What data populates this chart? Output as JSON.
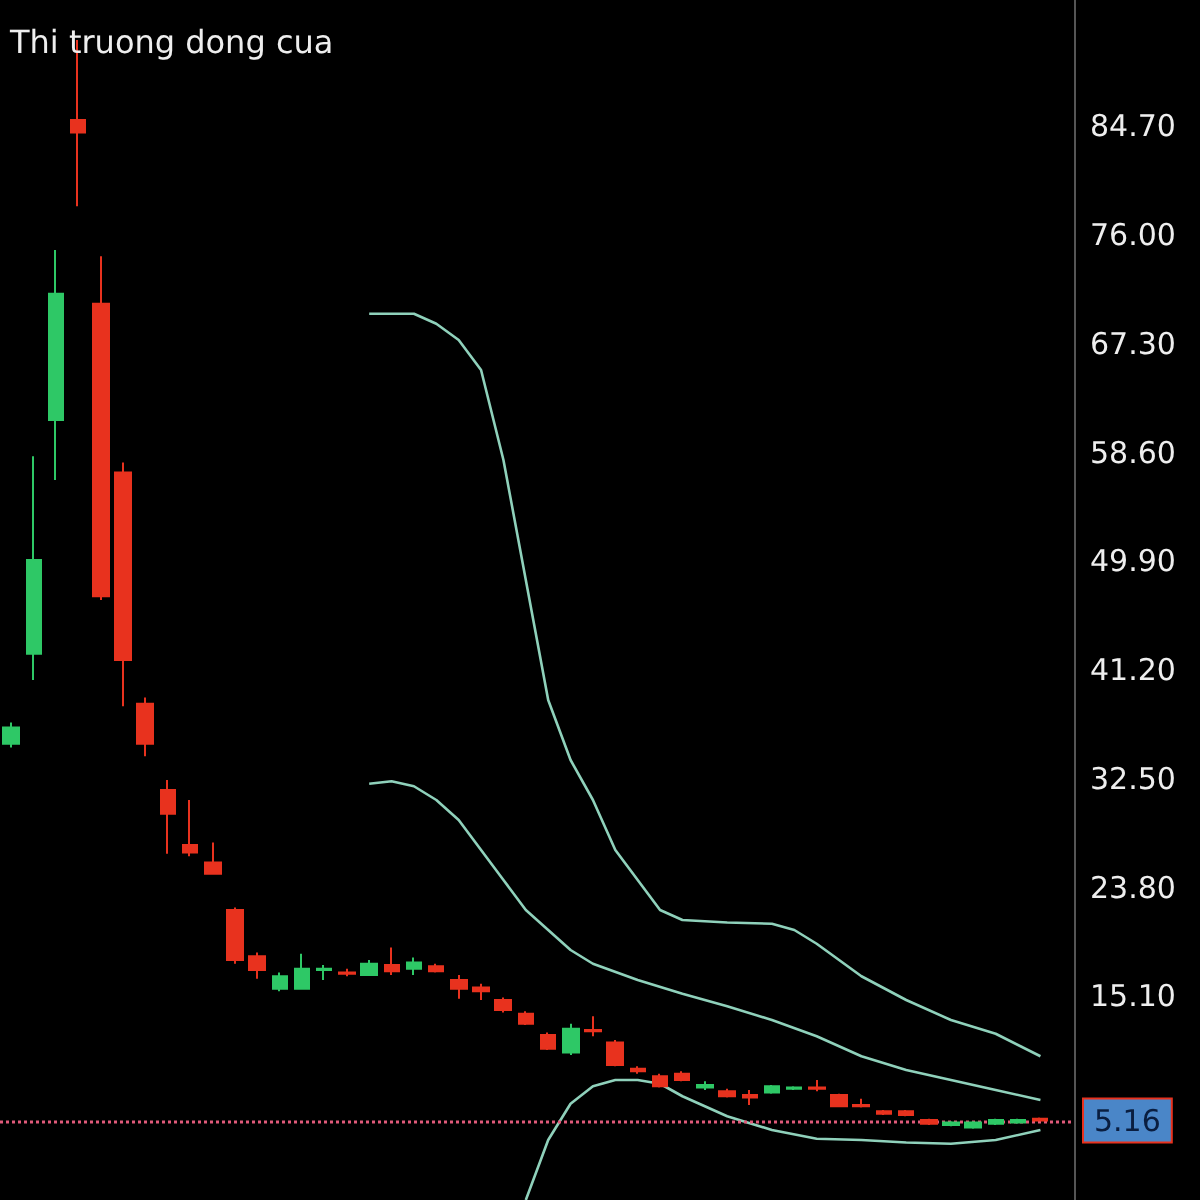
{
  "chart_data": {
    "type": "candlestick",
    "subtitle": "Thi truong dong cua",
    "categories": [
      null,
      null,
      null,
      null,
      null,
      null,
      null,
      null,
      null,
      null,
      null,
      null,
      null,
      null,
      null,
      null,
      null,
      null,
      null,
      null,
      null,
      null,
      null,
      null,
      null,
      null,
      null,
      null,
      null,
      null,
      null,
      null,
      null,
      null,
      null,
      null,
      null,
      null,
      null,
      null,
      null,
      null,
      null,
      null,
      null,
      null,
      null,
      null
    ],
    "ohlc": [
      [
        35.3,
        37.0,
        35.0,
        36.6
      ],
      [
        42.5,
        58.3,
        40.4,
        50.0
      ],
      [
        61.2,
        74.8,
        56.4,
        71.3
      ],
      [
        85.2,
        91.6,
        78.3,
        84.2
      ],
      [
        70.5,
        74.3,
        46.8,
        47.1
      ],
      [
        57.0,
        57.8,
        38.3,
        42.0
      ],
      [
        38.5,
        39.0,
        34.3,
        35.3
      ],
      [
        31.6,
        32.4,
        26.5,
        29.7
      ],
      [
        27.2,
        30.8,
        26.3,
        26.6
      ],
      [
        25.8,
        27.4,
        24.9,
        24.9
      ],
      [
        22.0,
        22.2,
        17.7,
        18.0
      ],
      [
        18.3,
        18.6,
        16.5,
        17.2
      ],
      [
        15.7,
        17.0,
        15.5,
        16.7
      ],
      [
        15.7,
        18.5,
        15.7,
        17.3
      ],
      [
        17.2,
        17.6,
        16.4,
        17.3
      ],
      [
        17.0,
        17.3,
        16.7,
        16.9
      ],
      [
        16.8,
        18.0,
        16.8,
        17.7
      ],
      [
        17.6,
        19.0,
        16.8,
        17.1
      ],
      [
        17.3,
        18.2,
        16.8,
        17.8
      ],
      [
        17.5,
        17.7,
        17.0,
        17.1
      ],
      [
        16.4,
        16.8,
        14.9,
        15.7
      ],
      [
        15.8,
        16.1,
        14.8,
        15.5
      ],
      [
        14.8,
        15.0,
        13.8,
        14.0
      ],
      [
        13.7,
        13.9,
        12.8,
        12.9
      ],
      [
        12.0,
        12.2,
        10.8,
        10.9
      ],
      [
        10.6,
        12.9,
        10.4,
        12.5
      ],
      [
        12.4,
        13.5,
        11.9,
        12.3
      ],
      [
        11.4,
        11.6,
        9.5,
        9.6
      ],
      [
        9.3,
        9.5,
        8.9,
        9.1
      ],
      [
        8.7,
        8.9,
        7.8,
        7.9
      ],
      [
        8.9,
        9.1,
        8.3,
        8.4
      ],
      [
        7.8,
        8.3,
        7.6,
        8.0
      ],
      [
        7.5,
        7.7,
        7.0,
        7.1
      ],
      [
        7.2,
        7.6,
        6.4,
        7.0
      ],
      [
        7.4,
        8.0,
        7.3,
        7.9
      ],
      [
        7.7,
        7.9,
        7.6,
        7.8
      ],
      [
        7.8,
        8.4,
        7.5,
        7.7
      ],
      [
        7.2,
        7.3,
        6.3,
        6.3
      ],
      [
        6.4,
        6.9,
        6.2,
        6.3
      ],
      [
        5.9,
        6.0,
        5.6,
        5.7
      ],
      [
        5.9,
        6.0,
        5.5,
        5.6
      ],
      [
        5.2,
        5.3,
        4.8,
        4.9
      ],
      [
        4.8,
        5.1,
        4.7,
        5.0
      ],
      [
        4.6,
        5.1,
        4.5,
        5.0
      ],
      [
        4.9,
        5.3,
        4.8,
        5.2
      ],
      [
        5.0,
        5.3,
        4.9,
        5.2
      ],
      [
        5.3,
        5.4,
        5.1,
        5.16
      ],
      null
    ],
    "colors": [
      "#2ec866",
      "#2ec866",
      "#2ec866",
      "#e8321e",
      "#e8321e",
      "#e8321e",
      "#e8321e",
      "#e8321e",
      "#e8321e",
      "#e8321e",
      "#e8321e",
      "#e8321e",
      "#2ec866",
      "#2ec866",
      "#2ec866",
      "#e8321e",
      "#2ec866",
      "#e8321e",
      "#2ec866",
      "#e8321e",
      "#e8321e",
      "#e8321e",
      "#e8321e",
      "#e8321e",
      "#e8321e",
      "#2ec866",
      "#e8321e",
      "#e8321e",
      "#e8321e",
      "#e8321e",
      "#e8321e",
      "#2ec866",
      "#e8321e",
      "#e8321e",
      "#2ec866",
      "#2ec866",
      "#e8321e",
      "#e8321e",
      "#e8321e",
      "#e8321e",
      "#e8321e",
      "#e8321e",
      "#2ec866",
      "#2ec866",
      "#2ec866",
      "#2ec866",
      "#e8321e",
      null
    ],
    "series": [
      {
        "type": "line",
        "color": "#8fd1bb",
        "values": [
          null,
          null,
          null,
          null,
          null,
          null,
          null,
          null,
          null,
          null,
          null,
          null,
          null,
          null,
          null,
          null,
          69.7,
          null,
          69.7,
          68.9,
          67.6,
          65.2,
          58.0,
          48.4,
          38.8,
          34.0,
          30.8,
          26.8,
          24.4,
          22.0,
          21.2,
          null,
          21.0,
          null,
          20.9,
          20.4,
          19.3,
          18.0,
          16.7,
          null,
          14.8,
          null,
          13.2,
          null,
          12.1,
          null,
          10.3,
          null
        ]
      },
      {
        "type": "line",
        "color": "#8fd1bb",
        "values": [
          null,
          null,
          null,
          null,
          null,
          null,
          null,
          null,
          null,
          null,
          null,
          null,
          null,
          null,
          null,
          null,
          32.1,
          32.3,
          31.9,
          30.8,
          29.2,
          26.8,
          24.4,
          22.0,
          20.4,
          18.8,
          17.7,
          null,
          16.4,
          null,
          15.3,
          null,
          14.3,
          null,
          13.2,
          null,
          11.9,
          null,
          10.3,
          null,
          9.2,
          null,
          8.4,
          null,
          7.6,
          null,
          6.8,
          null
        ]
      },
      {
        "type": "line",
        "color": "#8fd1bb",
        "values": [
          null,
          null,
          null,
          null,
          null,
          null,
          null,
          null,
          null,
          null,
          null,
          null,
          null,
          null,
          null,
          null,
          null,
          null,
          null,
          null,
          null,
          null,
          null,
          -1.2,
          3.6,
          6.5,
          7.9,
          8.4,
          8.4,
          8.1,
          7.1,
          null,
          5.5,
          null,
          4.4,
          null,
          3.7,
          null,
          3.6,
          null,
          3.4,
          null,
          3.3,
          null,
          3.6,
          null,
          4.4,
          null
        ]
      }
    ],
    "ylim": [
      -1.2,
      94.8
    ],
    "yticks": [
      {
        "value": 15.1,
        "label": "15.10"
      },
      {
        "value": 23.8,
        "label": "23.80"
      },
      {
        "value": 32.5,
        "label": "32.50"
      },
      {
        "value": 41.2,
        "label": "41.20"
      },
      {
        "value": 49.9,
        "label": "49.90"
      },
      {
        "value": 58.6,
        "label": "58.60"
      },
      {
        "value": 67.3,
        "label": "67.30"
      },
      {
        "value": 76.0,
        "label": "76.00"
      },
      {
        "value": 84.7,
        "label": "84.70"
      }
    ],
    "tick_labels": "y",
    "grid": false,
    "ref_lines": [
      {
        "axis": "y",
        "value": 5.16,
        "label": "5.16",
        "color": "#e05a7a",
        "line_style": "dotted"
      }
    ]
  }
}
